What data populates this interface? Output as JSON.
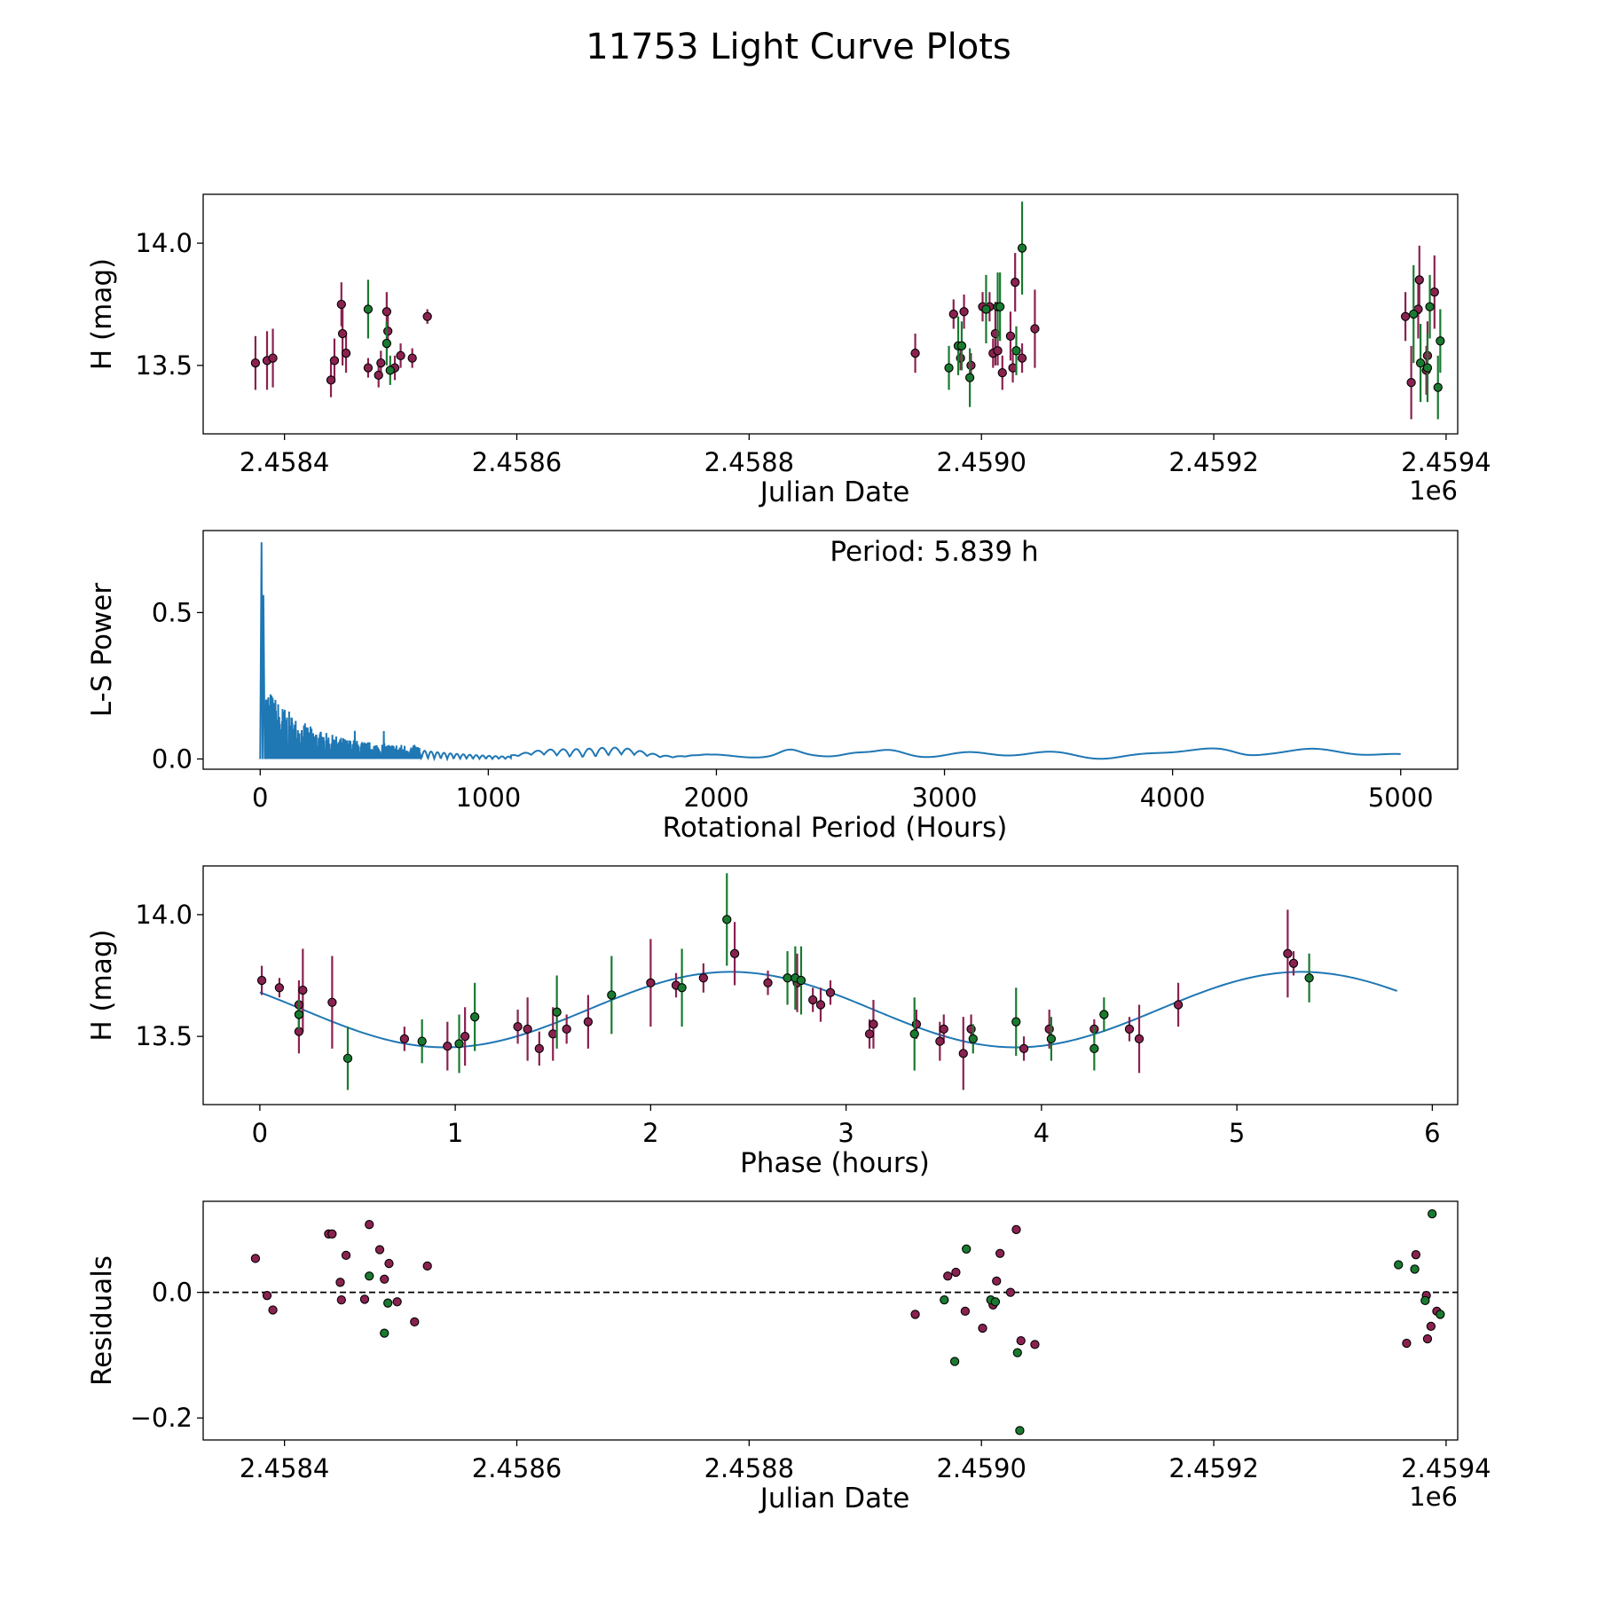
{
  "chart_data": [
    {
      "type": "scatter",
      "id": "jd-mag",
      "xlabel": "Julian Date",
      "ylabel": "H (mag)",
      "xlim": [
        2.45833,
        2.45941
      ],
      "ylim": [
        13.22,
        14.2
      ],
      "xticks": [
        2.4584,
        2.4586,
        2.4588,
        2.459,
        2.4592,
        2.4594
      ],
      "xtick_labels": [
        "2.4584",
        "2.4586",
        "2.4588",
        "2.4590",
        "2.4592",
        "2.4594"
      ],
      "yticks": [
        13.5,
        14.0
      ],
      "ytick_labels": [
        "13.5",
        "14.0"
      ],
      "offset_label": "1e6",
      "point_color": "#8a2250",
      "point_color_alt": "#1a7a30",
      "series": [
        {
          "name": "filter-1",
          "color": "#8a2250",
          "x": [
            2.458375,
            2.458385,
            2.45839,
            2.45844,
            2.458443,
            2.458449,
            2.45845,
            2.458453,
            2.458472,
            2.458481,
            2.458483,
            2.458488,
            2.458489,
            2.458495,
            2.4585,
            2.45851,
            2.458523,
            2.458943,
            2.458976,
            2.458982,
            2.458985,
            2.458991,
            2.459001,
            2.459007,
            2.45901,
            2.459012,
            2.459014,
            2.459018,
            2.459025,
            2.459027,
            2.459029,
            2.459035,
            2.459046,
            2.459365,
            2.45937,
            2.459376,
            2.459377,
            2.459383,
            2.459384,
            2.45939
          ],
          "y": [
            13.51,
            13.52,
            13.53,
            13.44,
            13.52,
            13.75,
            13.63,
            13.55,
            13.49,
            13.46,
            13.51,
            13.72,
            13.64,
            13.49,
            13.54,
            13.53,
            13.7,
            13.55,
            13.71,
            13.53,
            13.72,
            13.5,
            13.74,
            13.74,
            13.55,
            13.63,
            13.56,
            13.47,
            13.62,
            13.49,
            13.84,
            13.53,
            13.65,
            13.7,
            13.43,
            13.73,
            13.85,
            13.48,
            13.54,
            13.8
          ],
          "yerr": [
            0.11,
            0.12,
            0.12,
            0.07,
            0.09,
            0.09,
            0.13,
            0.08,
            0.04,
            0.05,
            0.05,
            0.08,
            0.07,
            0.05,
            0.05,
            0.04,
            0.03,
            0.08,
            0.06,
            0.05,
            0.07,
            0.05,
            0.06,
            0.06,
            0.06,
            0.13,
            0.06,
            0.07,
            0.1,
            0.06,
            0.12,
            0.06,
            0.16,
            0.1,
            0.15,
            0.12,
            0.14,
            0.1,
            0.14,
            0.15
          ]
        },
        {
          "name": "filter-2",
          "color": "#1a7a30",
          "x": [
            2.458472,
            2.458488,
            2.458491,
            2.458972,
            2.45898,
            2.458983,
            2.45899,
            2.459004,
            2.459014,
            2.459016,
            2.459035,
            2.45903,
            2.459372,
            2.459378,
            2.459384,
            2.459386,
            2.459393,
            2.459395
          ],
          "y": [
            13.73,
            13.59,
            13.48,
            13.49,
            13.58,
            13.58,
            13.45,
            13.73,
            13.74,
            13.74,
            13.98,
            13.56,
            13.71,
            13.51,
            13.49,
            13.74,
            13.41,
            13.6
          ]
        },
        {
          "name": "filter-2-errors",
          "color": "#1a7a30",
          "yerr": [
            0.12,
            0.09,
            0.06,
            0.09,
            0.12,
            0.1,
            0.12,
            0.14,
            0.14,
            0.14,
            0.19,
            0.1,
            0.2,
            0.16,
            0.14,
            0.13,
            0.13,
            0.13
          ]
        }
      ]
    },
    {
      "type": "line",
      "id": "periodogram",
      "xlabel": "Rotational Period (Hours)",
      "ylabel": "L-S Power",
      "xlim": [
        -250,
        5250
      ],
      "ylim": [
        -0.035,
        0.78
      ],
      "xticks": [
        0,
        1000,
        2000,
        3000,
        4000,
        5000
      ],
      "xtick_labels": [
        "0",
        "1000",
        "2000",
        "3000",
        "4000",
        "5000"
      ],
      "yticks": [
        0.0,
        0.5
      ],
      "ytick_labels": [
        "0.0",
        "0.5"
      ],
      "annotation": "Period: 5.839 h",
      "color": "#1f77b4",
      "peak_period": 5.839,
      "peak_power": 0.74,
      "x_max": 5000
    },
    {
      "type": "scatter",
      "id": "phase-fold",
      "xlabel": "Phase (hours)",
      "ylabel": "H (mag)",
      "xlim": [
        -0.29,
        6.13
      ],
      "ylim": [
        13.22,
        14.2
      ],
      "xticks": [
        0,
        1,
        2,
        3,
        4,
        5,
        6
      ],
      "xtick_labels": [
        "0",
        "1",
        "2",
        "3",
        "4",
        "5",
        "6"
      ],
      "yticks": [
        13.5,
        14.0
      ],
      "ytick_labels": [
        "13.5",
        "14.0"
      ],
      "fit": {
        "mean": 13.61,
        "amplitude": 0.155,
        "period_hours": 2.9195,
        "phase_of_max": 2.41,
        "x_max": 5.839,
        "color": "#1f77b4"
      },
      "series": [
        {
          "name": "filter-1",
          "color": "#8a2250",
          "x": [
            0.01,
            0.1,
            0.2,
            0.2,
            0.22,
            0.37,
            0.74,
            0.96,
            1.05,
            1.32,
            1.37,
            1.43,
            1.5,
            1.57,
            1.68,
            2.0,
            2.13,
            2.27,
            2.43,
            2.6,
            2.75,
            2.83,
            2.87,
            2.92,
            3.12,
            3.14,
            3.36,
            3.48,
            3.5,
            3.6,
            3.64,
            3.91,
            4.04,
            4.27,
            4.45,
            4.5,
            4.7,
            5.26,
            5.29
          ],
          "y": [
            13.73,
            13.7,
            13.63,
            13.52,
            13.69,
            13.64,
            13.49,
            13.46,
            13.5,
            13.54,
            13.53,
            13.45,
            13.51,
            13.53,
            13.56,
            13.72,
            13.71,
            13.74,
            13.84,
            13.72,
            13.72,
            13.65,
            13.63,
            13.68,
            13.51,
            13.55,
            13.55,
            13.48,
            13.53,
            13.43,
            13.53,
            13.45,
            13.53,
            13.53,
            13.53,
            13.49,
            13.63,
            13.84,
            13.8
          ],
          "yerr": [
            0.06,
            0.04,
            0.1,
            0.09,
            0.17,
            0.19,
            0.05,
            0.1,
            0.12,
            0.07,
            0.13,
            0.07,
            0.11,
            0.06,
            0.11,
            0.18,
            0.05,
            0.06,
            0.13,
            0.05,
            0.12,
            0.05,
            0.07,
            0.05,
            0.06,
            0.1,
            0.06,
            0.08,
            0.06,
            0.15,
            0.06,
            0.05,
            0.08,
            0.04,
            0.05,
            0.14,
            0.09,
            0.18,
            0.05
          ]
        },
        {
          "name": "filter-2",
          "color": "#1a7a30",
          "x": [
            0.2,
            0.45,
            0.83,
            1.02,
            1.1,
            1.52,
            1.8,
            2.16,
            2.39,
            2.7,
            2.74,
            2.77,
            3.35,
            3.65,
            3.87,
            4.05,
            4.27,
            4.32,
            5.37
          ],
          "y": [
            13.59,
            13.41,
            13.48,
            13.47,
            13.58,
            13.6,
            13.67,
            13.7,
            13.98,
            13.74,
            13.74,
            13.73,
            13.51,
            13.49,
            13.56,
            13.49,
            13.45,
            13.59,
            13.74
          ],
          "yerr": [
            0.06,
            0.13,
            0.09,
            0.12,
            0.14,
            0.15,
            0.16,
            0.16,
            0.19,
            0.11,
            0.13,
            0.14,
            0.15,
            0.06,
            0.14,
            0.09,
            0.09,
            0.07,
            0.1
          ]
        }
      ]
    },
    {
      "type": "scatter",
      "id": "residuals",
      "xlabel": "Julian Date",
      "ylabel": "Residuals",
      "xlim": [
        2.45833,
        2.45941
      ],
      "ylim": [
        -0.235,
        0.145
      ],
      "xticks": [
        2.4584,
        2.4586,
        2.4588,
        2.459,
        2.4592,
        2.4594
      ],
      "xtick_labels": [
        "2.4584",
        "2.4586",
        "2.4588",
        "2.4590",
        "2.4592",
        "2.4594"
      ],
      "yticks": [
        -0.2,
        0.0
      ],
      "ytick_labels": [
        "−0.2",
        "0.0"
      ],
      "offset_label": "1e6",
      "zero_line": 0.0,
      "series": [
        {
          "name": "filter-1",
          "color": "#8a2250",
          "x": [
            2.458375,
            2.458385,
            2.45839,
            2.458438,
            2.458441,
            2.458448,
            2.458449,
            2.458453,
            2.458469,
            2.458473,
            2.458482,
            2.458486,
            2.45849,
            2.458497,
            2.458512,
            2.458523,
            2.458943,
            2.458971,
            2.458978,
            2.458986,
            2.459001,
            2.45901,
            2.459013,
            2.459016,
            2.459025,
            2.45903,
            2.459034,
            2.459046,
            2.459366,
            2.459374,
            2.459383,
            2.459384,
            2.459387,
            2.459392
          ],
          "y": [
            0.054,
            -0.005,
            -0.028,
            0.093,
            0.093,
            0.016,
            -0.012,
            0.059,
            -0.011,
            0.108,
            0.068,
            0.021,
            0.046,
            -0.015,
            -0.047,
            0.042,
            -0.035,
            0.026,
            0.032,
            -0.03,
            -0.057,
            -0.02,
            0.018,
            0.062,
            0.0,
            0.1,
            -0.077,
            -0.083,
            -0.081,
            0.06,
            -0.005,
            -0.074,
            -0.054,
            -0.03
          ]
        },
        {
          "name": "filter-2",
          "color": "#1a7a30",
          "x": [
            2.458473,
            2.458486,
            2.458489,
            2.458968,
            2.458977,
            2.458987,
            2.459008,
            2.459012,
            2.459033,
            2.459031,
            2.459359,
            2.459373,
            2.459382,
            2.459388,
            2.459395
          ],
          "y": [
            0.026,
            -0.065,
            -0.017,
            -0.012,
            -0.11,
            0.069,
            -0.012,
            -0.015,
            -0.22,
            -0.096,
            0.044,
            0.037,
            -0.013,
            0.125,
            -0.035
          ]
        }
      ]
    }
  ],
  "figure": {
    "title": "11753 Light Curve Plots"
  }
}
